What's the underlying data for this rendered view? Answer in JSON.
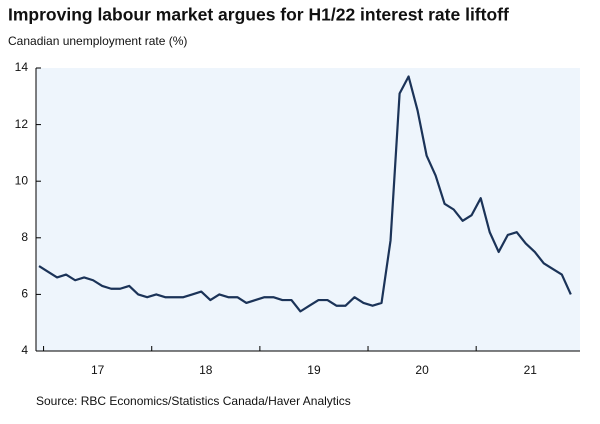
{
  "chart_data": {
    "type": "line",
    "title": "Improving labour market argues for H1/22 interest rate liftoff",
    "subtitle": "Canadian unemployment rate (%)",
    "source": "Source:  RBC Economics/Statistics Canada/Haver Analytics",
    "x": [
      16.958,
      17.042,
      17.125,
      17.208,
      17.292,
      17.375,
      17.458,
      17.542,
      17.625,
      17.708,
      17.792,
      17.875,
      17.958,
      18.042,
      18.125,
      18.208,
      18.292,
      18.375,
      18.458,
      18.542,
      18.625,
      18.708,
      18.792,
      18.875,
      18.958,
      19.042,
      19.125,
      19.208,
      19.292,
      19.375,
      19.458,
      19.542,
      19.625,
      19.708,
      19.792,
      19.875,
      19.958,
      20.042,
      20.125,
      20.208,
      20.292,
      20.375,
      20.458,
      20.542,
      20.625,
      20.708,
      20.792,
      20.875,
      20.958,
      21.042,
      21.125,
      21.208,
      21.292,
      21.375,
      21.458,
      21.542,
      21.625,
      21.708,
      21.792,
      21.875
    ],
    "series": [
      {
        "name": "Canadian unemployment rate",
        "color": "#1b3358",
        "values": [
          7.0,
          6.8,
          6.6,
          6.7,
          6.5,
          6.6,
          6.5,
          6.3,
          6.2,
          6.2,
          6.3,
          6.0,
          5.9,
          6.0,
          5.9,
          5.9,
          5.9,
          6.0,
          6.1,
          5.8,
          6.0,
          5.9,
          5.9,
          5.7,
          5.8,
          5.9,
          5.9,
          5.8,
          5.8,
          5.4,
          5.6,
          5.8,
          5.8,
          5.6,
          5.6,
          5.9,
          5.7,
          5.6,
          5.7,
          7.9,
          13.1,
          13.7,
          12.5,
          10.9,
          10.2,
          9.2,
          9.0,
          8.6,
          8.8,
          9.4,
          8.2,
          7.5,
          8.1,
          8.2,
          7.8,
          7.5,
          7.1,
          6.9,
          6.7,
          6.0
        ]
      }
    ],
    "xlim": [
      16.93,
      21.96
    ],
    "xticks": [
      {
        "value": 17.5,
        "label": "17"
      },
      {
        "value": 18.5,
        "label": "18"
      },
      {
        "value": 19.5,
        "label": "19"
      },
      {
        "value": 20.5,
        "label": "20"
      },
      {
        "value": 21.5,
        "label": "21"
      }
    ],
    "xminor": [
      17,
      18,
      19,
      20,
      21
    ],
    "ylim": [
      4,
      14
    ],
    "yticks": [
      4,
      6,
      8,
      10,
      12,
      14
    ],
    "background": "#eef5fc"
  }
}
